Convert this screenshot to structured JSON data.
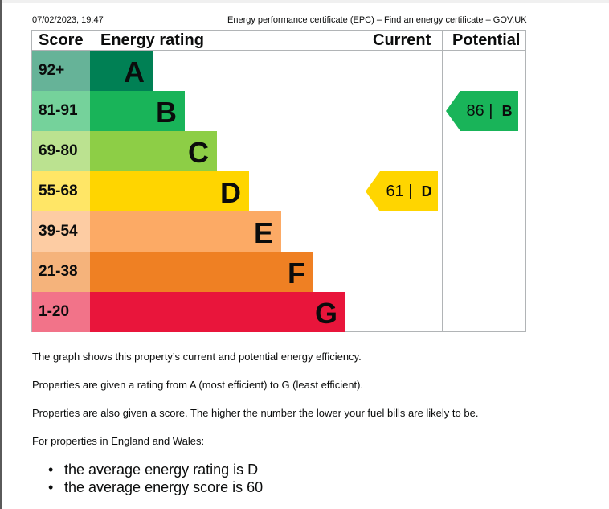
{
  "header": {
    "datetime": "07/02/2023, 19:47",
    "page_title": "Energy performance certificate (EPC) – Find an energy certificate – GOV.UK"
  },
  "epc_chart": {
    "columns": {
      "score": "Score",
      "rating": "Energy rating",
      "current": "Current",
      "potential": "Potential"
    },
    "bands": [
      {
        "range": "92+",
        "letter": "A",
        "color": "#008054",
        "score_bg": "#66b398"
      },
      {
        "range": "81-91",
        "letter": "B",
        "color": "#19b459",
        "score_bg": "#75d29b"
      },
      {
        "range": "69-80",
        "letter": "C",
        "color": "#8dce46",
        "score_bg": "#bbe290"
      },
      {
        "range": "55-68",
        "letter": "D",
        "color": "#ffd500",
        "score_bg": "#ffe666"
      },
      {
        "range": "39-54",
        "letter": "E",
        "color": "#fcaa65",
        "score_bg": "#fdcca3"
      },
      {
        "range": "21-38",
        "letter": "F",
        "color": "#ef8023",
        "score_bg": "#f5b37b"
      },
      {
        "range": "1-20",
        "letter": "G",
        "color": "#e9153b",
        "score_bg": "#f27389"
      }
    ],
    "current": {
      "score": "61",
      "letter": "D",
      "color": "#ffd500",
      "band_index": 3
    },
    "potential": {
      "score": "86",
      "letter": "B",
      "color": "#19b459",
      "band_index": 1
    }
  },
  "text": {
    "p1": "The graph shows this property’s current and potential energy efficiency.",
    "p2": "Properties are given a rating from A (most efficient) to G (least efficient).",
    "p3": "Properties are also given a score. The higher the number the lower your fuel bills are likely to be.",
    "p4": "For properties in England and Wales:",
    "bullets": [
      "the average energy rating is D",
      "the average energy score is 60"
    ]
  }
}
